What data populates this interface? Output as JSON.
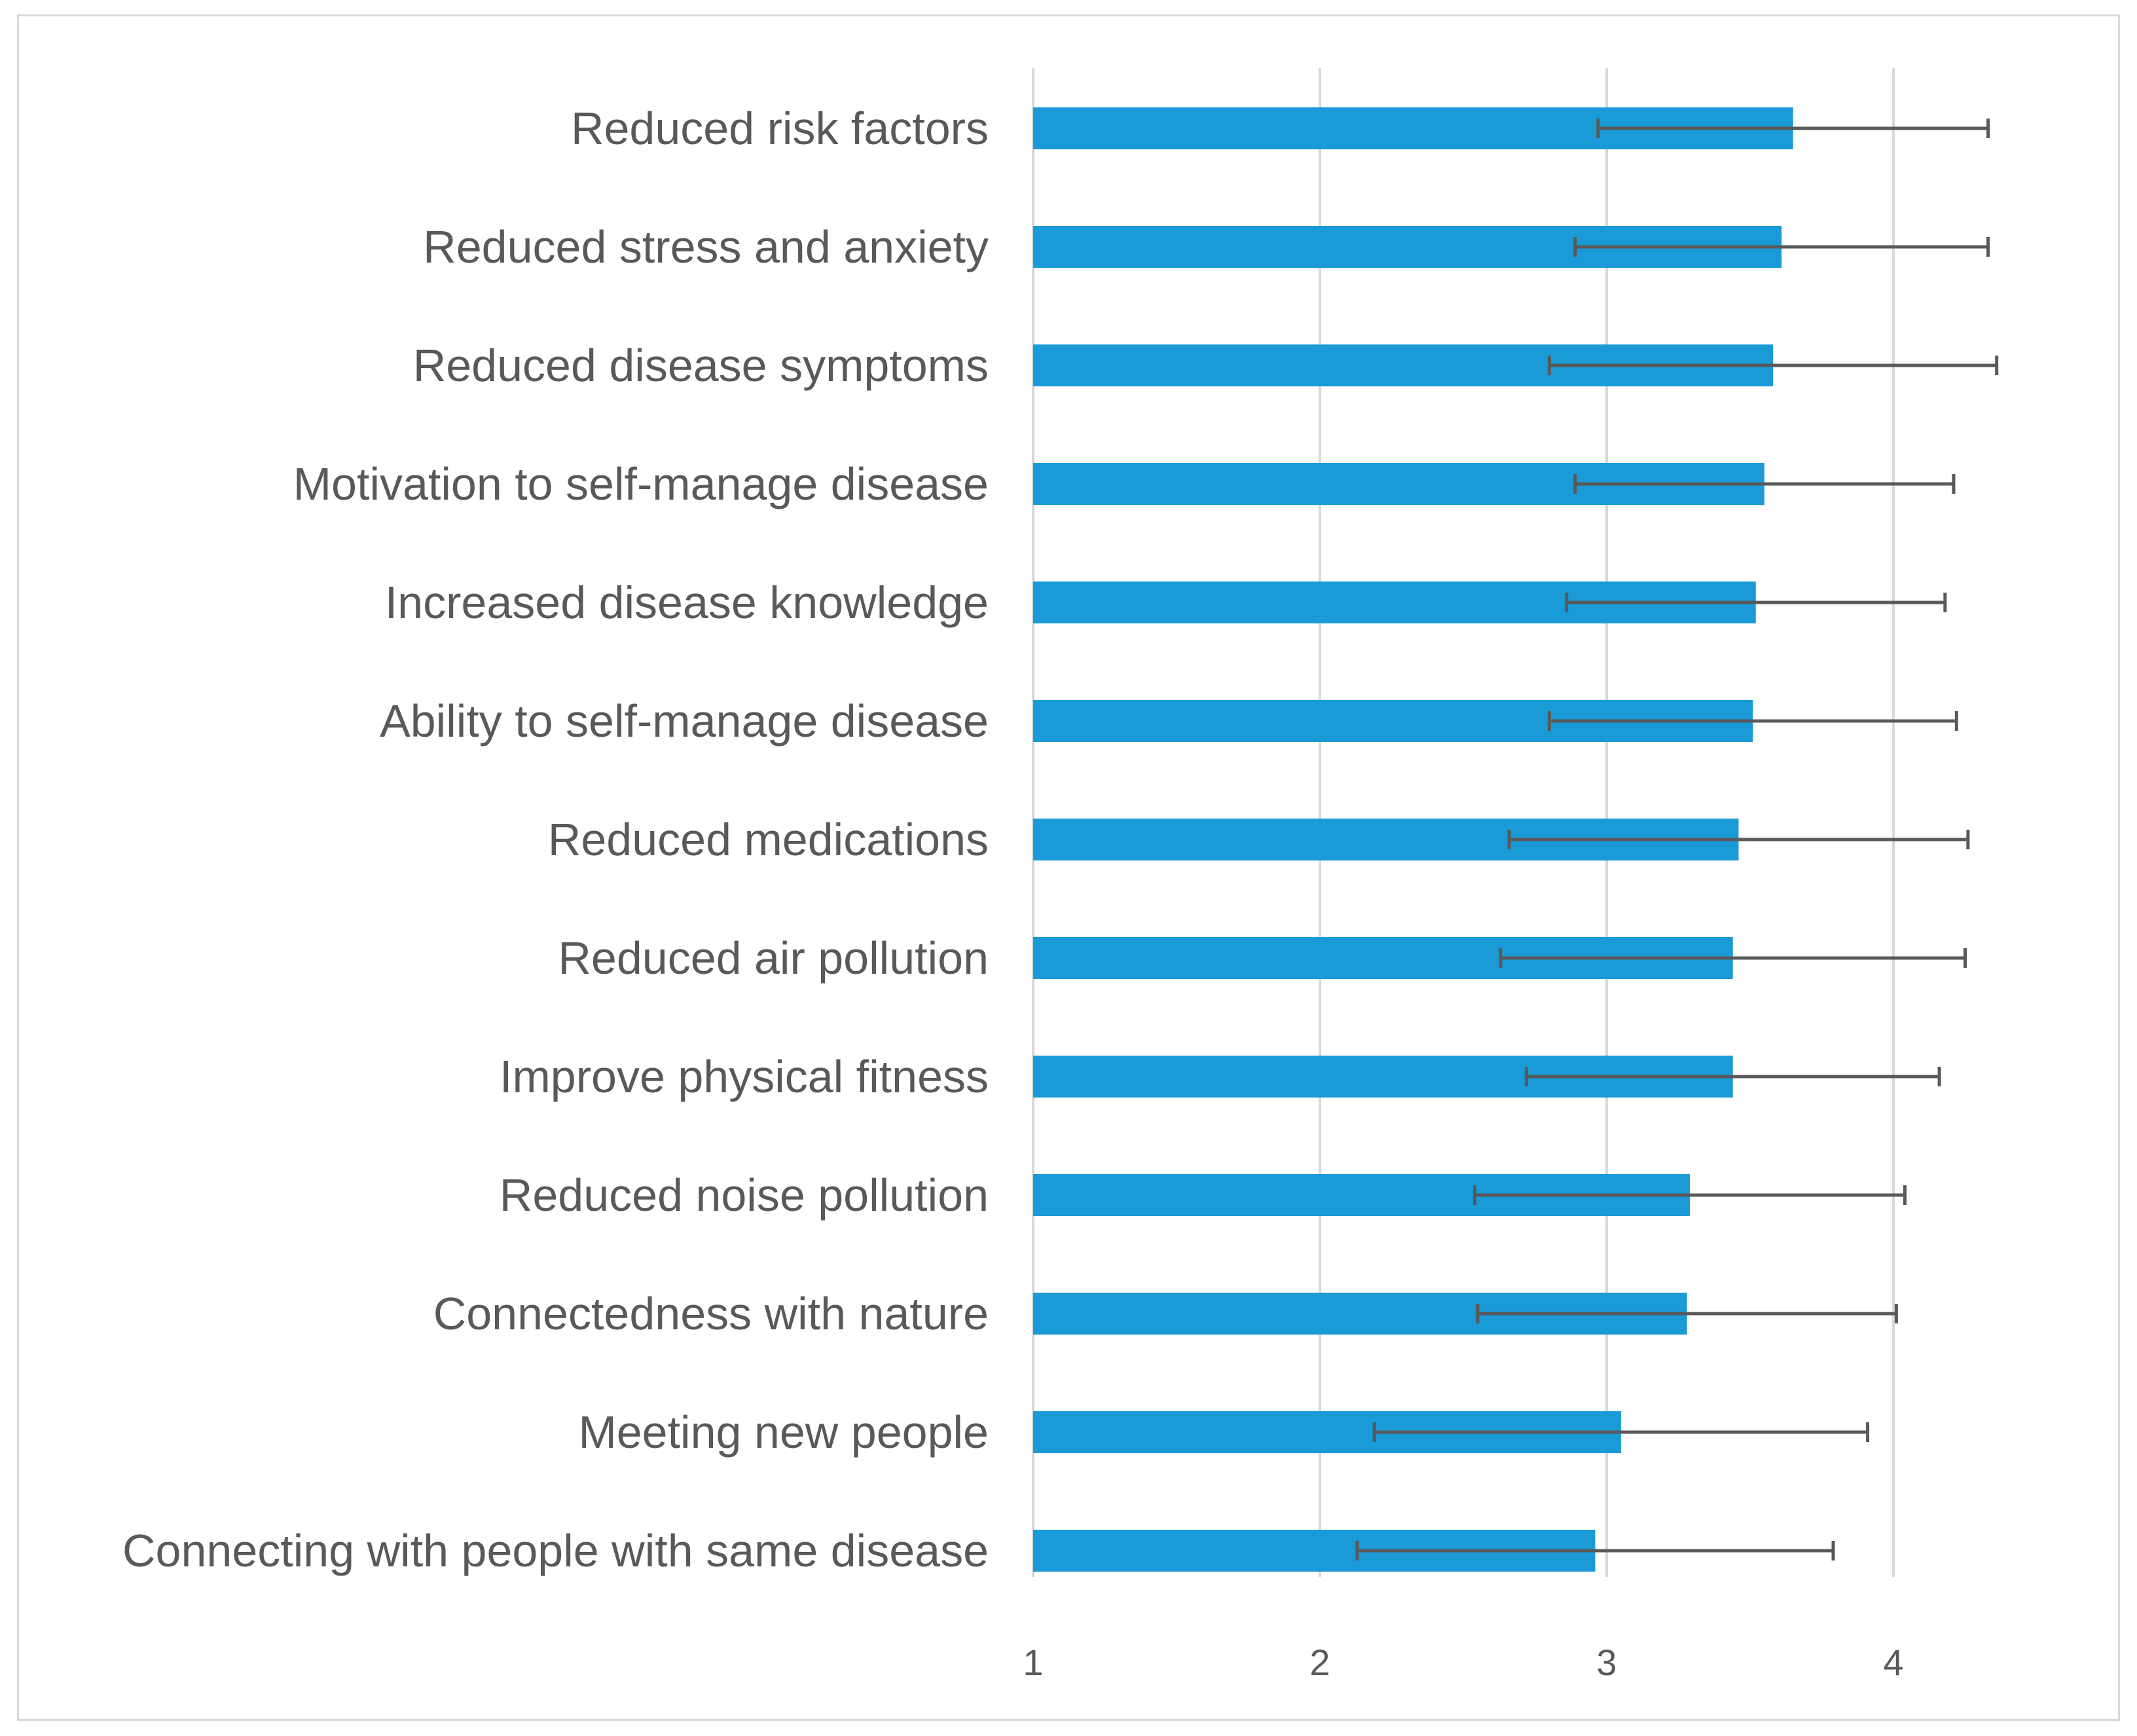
{
  "chart_data": {
    "type": "bar",
    "orientation": "horizontal",
    "title": "",
    "xlabel": "",
    "ylabel": "",
    "xlim": [
      1,
      4.35
    ],
    "x_ticks": [
      1,
      2,
      3,
      4
    ],
    "tick_labels": [
      "1",
      "2",
      "3",
      "4"
    ],
    "grid": true,
    "legend": "none",
    "bar_color": "#1a9ad6",
    "error_bar_color": "#595959",
    "categories": [
      "Reduced risk factors",
      "Reduced stress and anxiety",
      "Reduced disease symptoms",
      "Motivation to self-manage disease",
      "Increased disease knowledge",
      "Ability to self-manage disease",
      "Reduced medications",
      "Reduced air pollution",
      "Improve physical fitness",
      "Reduced noise pollution",
      "Connectedness with nature",
      "Meeting new people",
      "Connecting with people with same disease"
    ],
    "values": [
      3.65,
      3.61,
      3.58,
      3.55,
      3.52,
      3.51,
      3.46,
      3.44,
      3.44,
      3.29,
      3.28,
      3.05,
      2.96
    ],
    "error": [
      0.68,
      0.72,
      0.78,
      0.66,
      0.66,
      0.71,
      0.8,
      0.81,
      0.72,
      0.75,
      0.73,
      0.86,
      0.83
    ]
  }
}
